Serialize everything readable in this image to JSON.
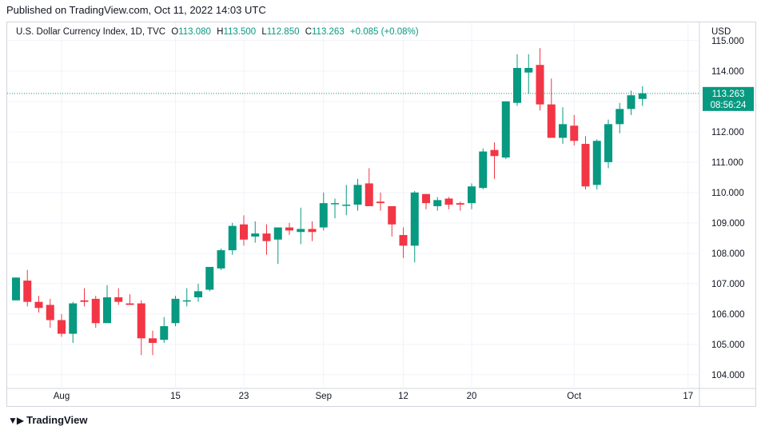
{
  "published": "Published on TradingView.com, Oct 11, 2022 14:03 UTC",
  "legend": {
    "symbol": "U.S. Dollar Currency Index, 1D, TVC",
    "open_key": "O",
    "open": "113.080",
    "high_key": "H",
    "high": "113.500",
    "low_key": "L",
    "low": "112.850",
    "close_key": "C",
    "close": "113.263",
    "change": "+0.085 (+0.08%)"
  },
  "currency": "USD",
  "last_price_label": "113.263",
  "countdown_label": "08:56:24",
  "footer_brand": "TradingView",
  "colors": {
    "up": "#089981",
    "down": "#f23645",
    "grid": "#f0f3fa"
  },
  "chart_data": {
    "type": "candlestick",
    "y_range": [
      103.55,
      115.6
    ],
    "y_ticks": [
      104,
      105,
      106,
      107,
      108,
      109,
      110,
      111,
      112,
      113,
      114,
      115
    ],
    "y_tick_labels": [
      "104.000",
      "105.000",
      "106.000",
      "107.000",
      "108.000",
      "109.000",
      "110.000",
      "111.000",
      "112.000",
      "113.000",
      "114.000",
      "115.000"
    ],
    "x_ticks": [
      {
        "label": "Aug",
        "index": 4
      },
      {
        "label": "15",
        "index": 14
      },
      {
        "label": "23",
        "index": 20
      },
      {
        "label": "Sep",
        "index": 27
      },
      {
        "label": "12",
        "index": 34
      },
      {
        "label": "20",
        "index": 40
      },
      {
        "label": "Oct",
        "index": 49
      },
      {
        "label": "17",
        "index": 59
      }
    ],
    "last_price": 113.263,
    "candles": [
      {
        "date": "Jul 28",
        "o": 106.45,
        "h": 107.2,
        "l": 106.45,
        "c": 107.2
      },
      {
        "date": "Jul 29",
        "o": 107.1,
        "h": 107.45,
        "l": 106.25,
        "c": 106.4
      },
      {
        "date": "Aug 1",
        "o": 106.4,
        "h": 106.6,
        "l": 106.05,
        "c": 106.2
      },
      {
        "date": "Aug 2",
        "o": 106.3,
        "h": 106.5,
        "l": 105.55,
        "c": 105.8
      },
      {
        "date": "Aug 3",
        "o": 105.8,
        "h": 106.0,
        "l": 105.25,
        "c": 105.35
      },
      {
        "date": "Aug 4",
        "o": 105.35,
        "h": 106.4,
        "l": 105.05,
        "c": 106.35
      },
      {
        "date": "Aug 5",
        "o": 106.45,
        "h": 106.85,
        "l": 106.25,
        "c": 106.4
      },
      {
        "date": "Aug 8",
        "o": 106.5,
        "h": 106.6,
        "l": 105.55,
        "c": 105.7
      },
      {
        "date": "Aug 9",
        "o": 105.7,
        "h": 106.95,
        "l": 105.7,
        "c": 106.55
      },
      {
        "date": "Aug 10",
        "o": 106.55,
        "h": 106.85,
        "l": 106.3,
        "c": 106.4
      },
      {
        "date": "Aug 11",
        "o": 106.35,
        "h": 106.65,
        "l": 106.3,
        "c": 106.3
      },
      {
        "date": "Aug 12",
        "o": 106.35,
        "h": 106.45,
        "l": 104.65,
        "c": 105.2
      },
      {
        "date": "Aug 15",
        "o": 105.2,
        "h": 105.45,
        "l": 104.65,
        "c": 105.05
      },
      {
        "date": "Aug 16",
        "o": 105.15,
        "h": 105.9,
        "l": 105.05,
        "c": 105.6
      },
      {
        "date": "Aug 17",
        "o": 105.7,
        "h": 106.6,
        "l": 105.6,
        "c": 106.5
      },
      {
        "date": "Aug 18",
        "o": 106.45,
        "h": 106.85,
        "l": 106.25,
        "c": 106.45
      },
      {
        "date": "Aug 19",
        "o": 106.55,
        "h": 107.0,
        "l": 106.4,
        "c": 106.75
      },
      {
        "date": "Aug 22",
        "o": 106.8,
        "h": 107.55,
        "l": 106.75,
        "c": 107.55
      },
      {
        "date": "Aug 23",
        "o": 107.5,
        "h": 108.15,
        "l": 107.45,
        "c": 108.1
      },
      {
        "date": "Aug 24",
        "o": 108.1,
        "h": 109.0,
        "l": 107.95,
        "c": 108.9
      },
      {
        "date": "Aug 25",
        "o": 108.95,
        "h": 109.25,
        "l": 108.25,
        "c": 108.45
      },
      {
        "date": "Aug 26",
        "o": 108.55,
        "h": 109.05,
        "l": 108.35,
        "c": 108.65
      },
      {
        "date": "Aug 29",
        "o": 108.65,
        "h": 108.95,
        "l": 107.95,
        "c": 108.4
      },
      {
        "date": "Aug 30",
        "o": 108.45,
        "h": 108.85,
        "l": 107.65,
        "c": 108.85
      },
      {
        "date": "Aug 31",
        "o": 108.85,
        "h": 109.0,
        "l": 108.6,
        "c": 108.75
      },
      {
        "date": "Sep 1",
        "o": 108.7,
        "h": 109.5,
        "l": 108.3,
        "c": 108.8
      },
      {
        "date": "Sep 2",
        "o": 108.8,
        "h": 109.05,
        "l": 108.4,
        "c": 108.7
      },
      {
        "date": "Sep 5",
        "o": 108.85,
        "h": 110.0,
        "l": 108.75,
        "c": 109.65
      },
      {
        "date": "Sep 6",
        "o": 109.65,
        "h": 109.8,
        "l": 109.15,
        "c": 109.65
      },
      {
        "date": "Sep 7",
        "o": 109.6,
        "h": 110.25,
        "l": 109.25,
        "c": 109.6
      },
      {
        "date": "Sep 8",
        "o": 109.6,
        "h": 110.45,
        "l": 109.4,
        "c": 110.25
      },
      {
        "date": "Sep 9",
        "o": 110.3,
        "h": 110.8,
        "l": 109.55,
        "c": 109.55
      },
      {
        "date": "Sep 12",
        "o": 109.7,
        "h": 110.0,
        "l": 109.4,
        "c": 109.65
      },
      {
        "date": "Sep 13",
        "o": 109.55,
        "h": 109.55,
        "l": 108.55,
        "c": 108.95
      },
      {
        "date": "Sep 14",
        "o": 108.6,
        "h": 108.85,
        "l": 107.85,
        "c": 108.25
      },
      {
        "date": "Sep 15",
        "o": 108.25,
        "h": 110.05,
        "l": 107.7,
        "c": 110.0
      },
      {
        "date": "Sep 16",
        "o": 109.95,
        "h": 109.95,
        "l": 109.45,
        "c": 109.65
      },
      {
        "date": "Sep 19",
        "o": 109.55,
        "h": 109.85,
        "l": 109.4,
        "c": 109.75
      },
      {
        "date": "Sep 20",
        "o": 109.8,
        "h": 109.85,
        "l": 109.45,
        "c": 109.6
      },
      {
        "date": "Sep 21",
        "o": 109.65,
        "h": 109.7,
        "l": 109.4,
        "c": 109.6
      },
      {
        "date": "Sep 22",
        "o": 109.65,
        "h": 110.3,
        "l": 109.45,
        "c": 110.2
      },
      {
        "date": "Sep 23",
        "o": 110.15,
        "h": 111.45,
        "l": 110.1,
        "c": 111.35
      },
      {
        "date": "Sep 26",
        "o": 111.4,
        "h": 111.65,
        "l": 110.45,
        "c": 111.2
      },
      {
        "date": "Sep 27",
        "o": 111.15,
        "h": 113.0,
        "l": 111.1,
        "c": 113.0
      },
      {
        "date": "Sep 28",
        "o": 112.95,
        "h": 114.55,
        "l": 112.85,
        "c": 114.1
      },
      {
        "date": "Sep 29",
        "o": 113.95,
        "h": 114.55,
        "l": 113.25,
        "c": 114.1
      },
      {
        "date": "Sep 30",
        "o": 114.2,
        "h": 114.75,
        "l": 112.7,
        "c": 112.9
      },
      {
        "date": "Oct 3",
        "o": 112.9,
        "h": 113.75,
        "l": 111.8,
        "c": 111.8
      },
      {
        "date": "Oct 4",
        "o": 111.8,
        "h": 112.8,
        "l": 111.6,
        "c": 112.25
      },
      {
        "date": "Oct 5",
        "o": 112.2,
        "h": 112.55,
        "l": 111.55,
        "c": 111.7
      },
      {
        "date": "Oct 6",
        "o": 111.6,
        "h": 111.85,
        "l": 110.1,
        "c": 110.2
      },
      {
        "date": "Oct 7",
        "o": 110.25,
        "h": 111.75,
        "l": 110.1,
        "c": 111.7
      },
      {
        "date": "Oct 10",
        "o": 111.0,
        "h": 112.4,
        "l": 110.8,
        "c": 112.25
      },
      {
        "date": "Oct 11",
        "o": 112.25,
        "h": 112.95,
        "l": 111.95,
        "c": 112.75
      },
      {
        "date": "Oct 12",
        "o": 112.75,
        "h": 113.35,
        "l": 112.55,
        "c": 113.2
      },
      {
        "date": "Oct 13",
        "o": 113.08,
        "h": 113.5,
        "l": 112.85,
        "c": 113.263
      }
    ]
  }
}
